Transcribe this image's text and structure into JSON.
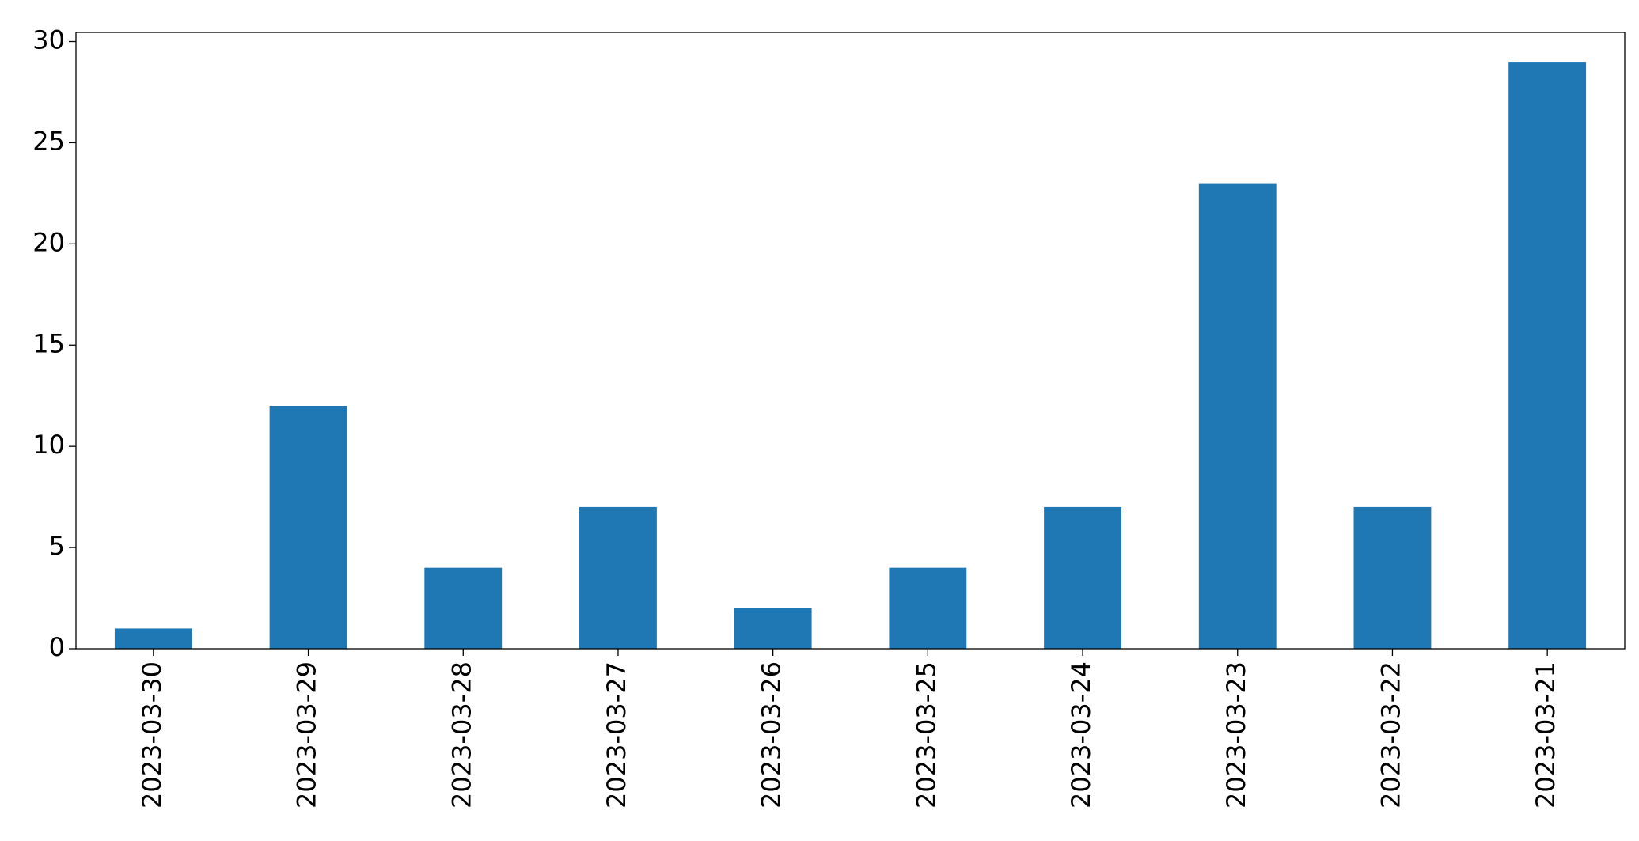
{
  "chart_data": {
    "type": "bar",
    "categories": [
      "2023-03-30",
      "2023-03-29",
      "2023-03-28",
      "2023-03-27",
      "2023-03-26",
      "2023-03-25",
      "2023-03-24",
      "2023-03-23",
      "2023-03-22",
      "2023-03-21"
    ],
    "values": [
      1,
      12,
      4,
      7,
      2,
      4,
      7,
      23,
      7,
      29
    ],
    "color": "#1f77b4",
    "ylim": [
      0,
      30.45
    ],
    "yticks": [
      0,
      5,
      10,
      15,
      20,
      25,
      30
    ],
    "grid": false
  }
}
